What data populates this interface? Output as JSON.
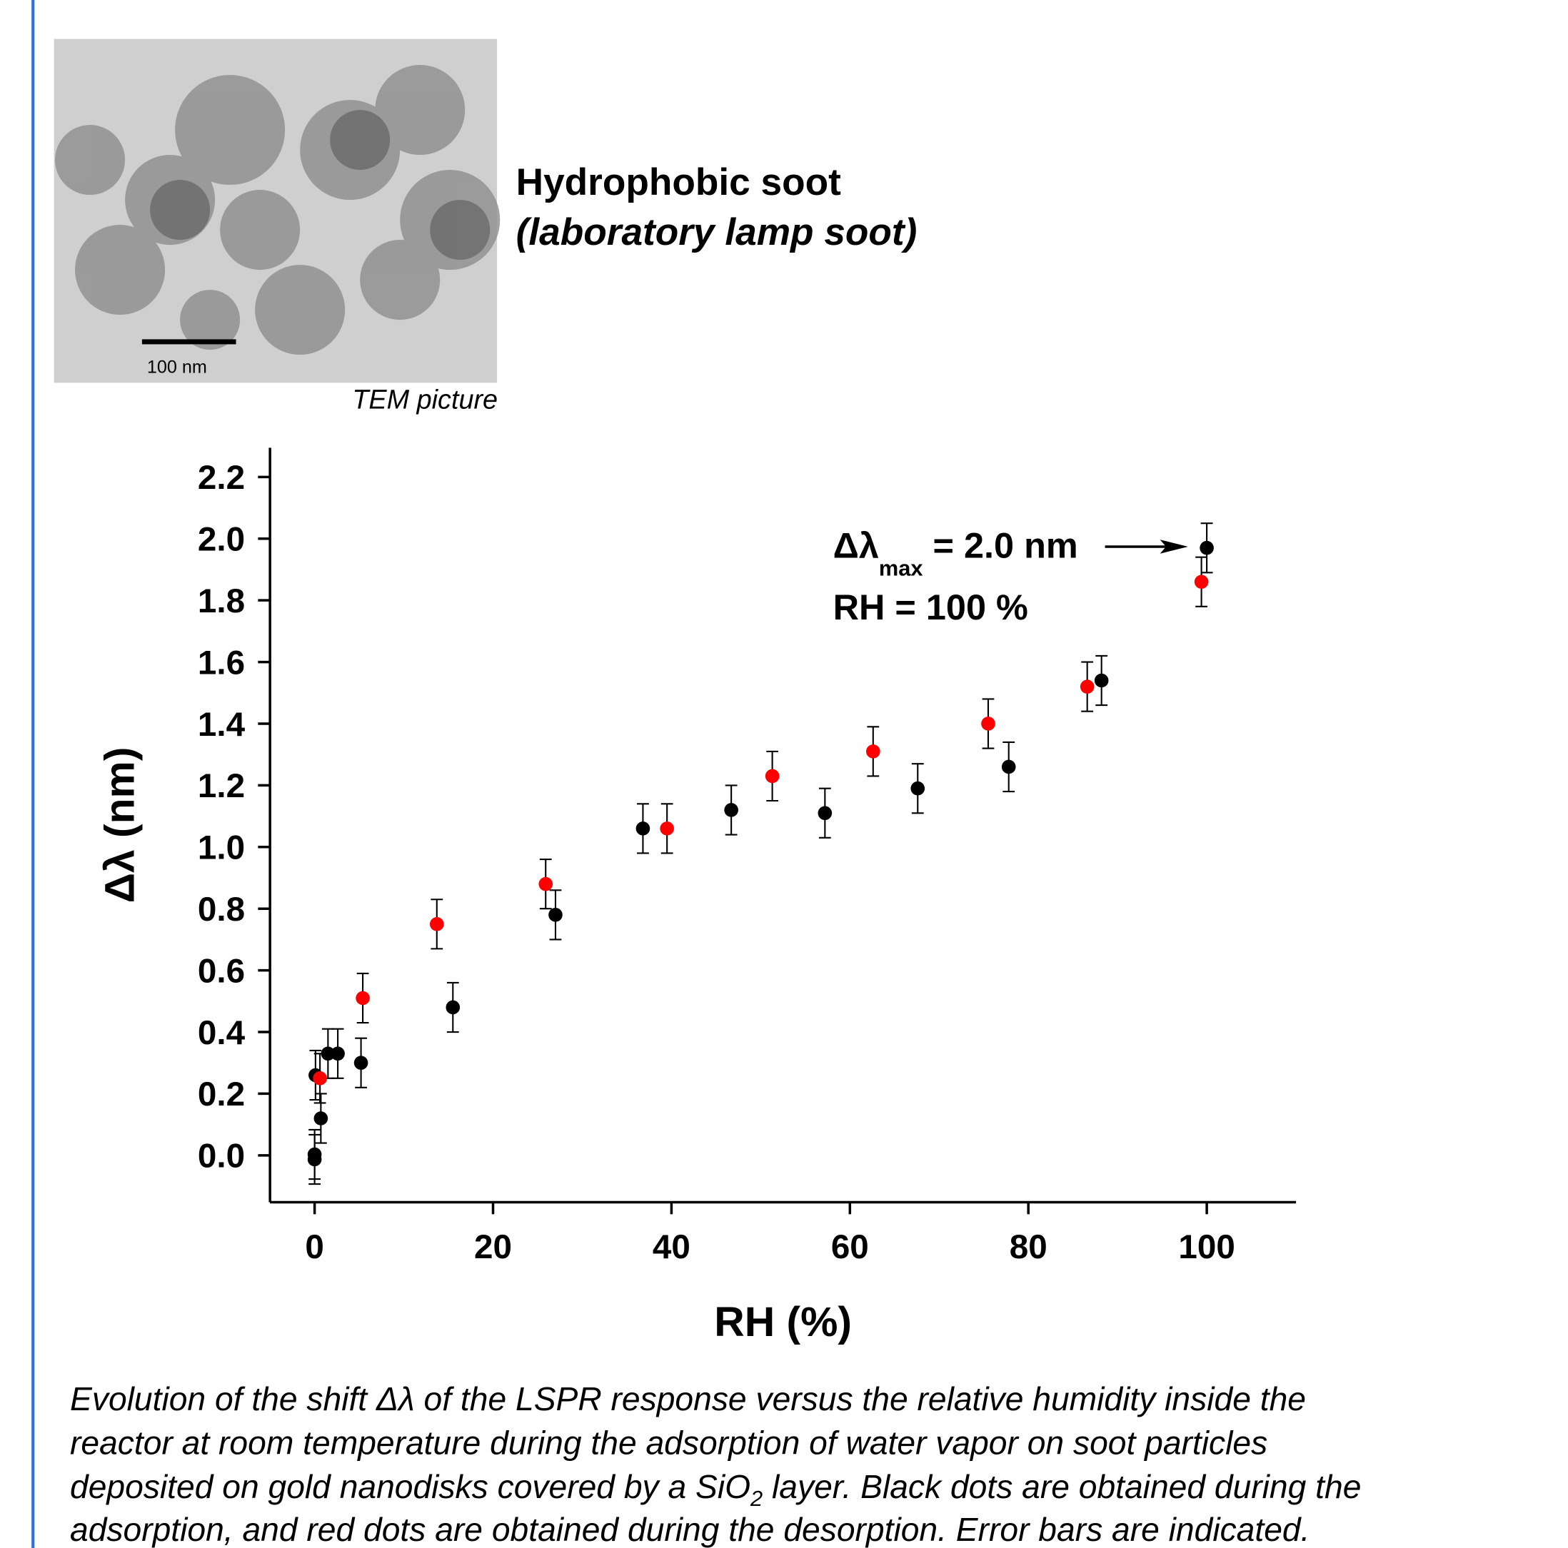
{
  "header": {
    "title": "Hydrophobic soot",
    "subtitle": "(laboratory lamp soot)"
  },
  "image": {
    "scale_label": "100 nm",
    "caption": "TEM picture"
  },
  "chart_data": {
    "type": "scatter",
    "x_label": "RH (%)",
    "y_label": "Δλ (nm)",
    "xlim": [
      -5,
      110
    ],
    "ylim": [
      -0.152,
      2.295
    ],
    "xticks": [
      0,
      20,
      40,
      60,
      80,
      100
    ],
    "yticks": [
      {
        "value": 0,
        "label": "0.0"
      },
      0.2,
      0.4,
      0.6,
      0.8,
      {
        "value": 1,
        "label": "1.0"
      },
      1.2,
      1.4,
      1.6,
      1.8,
      {
        "value": 2,
        "label": "2.0"
      },
      2.2
    ],
    "series": [
      {
        "color": "#000000",
        "x": [
          0,
          0,
          0.1,
          0.7,
          1.5,
          2.6,
          5.2,
          15.5,
          27.0,
          36.8,
          46.7,
          57.2,
          67.6,
          77.8,
          88.2,
          100
        ],
        "values": [
          -0.013,
          0.003,
          0.26,
          0.12,
          0.33,
          0.33,
          0.3,
          0.48,
          0.78,
          1.06,
          1.12,
          1.11,
          1.19,
          1.26,
          1.54,
          1.97
        ],
        "errors": [
          0.08,
          0.08,
          0.08,
          0.08,
          0.08,
          0.08,
          0.08,
          0.08,
          0.08,
          0.08,
          0.08,
          0.08,
          0.08,
          0.08,
          0.08,
          0.08
        ]
      },
      {
        "color": "#ff0000",
        "x": [
          0.6,
          5.4,
          13.7,
          25.9,
          39.5,
          51.3,
          62.6,
          75.5,
          86.6,
          99.4
        ],
        "values": [
          0.25,
          0.51,
          0.75,
          0.88,
          1.06,
          1.23,
          1.31,
          1.4,
          1.52,
          1.86
        ],
        "errors": [
          0.08,
          0.08,
          0.08,
          0.08,
          0.08,
          0.08,
          0.08,
          0.08,
          0.08,
          0.08
        ]
      }
    ],
    "annotation": {
      "symbol": "Δλ",
      "subscript": "max",
      "text": " = 2.0 nm",
      "line2": "RH = 100 %"
    }
  },
  "caption": {
    "lines": [
      "Evolution of the shift Δλ of the LSPR response versus the relative humidity inside the",
      "reactor at room temperature during the adsorption of water vapor on soot particles"
    ],
    "line3": [
      "deposited on gold nanodisks covered by a SiO",
      "2",
      " layer. Black dots are obtained during the"
    ],
    "line4": "adsorption, and red dots are obtained during the desorption. Error bars are indicated."
  }
}
